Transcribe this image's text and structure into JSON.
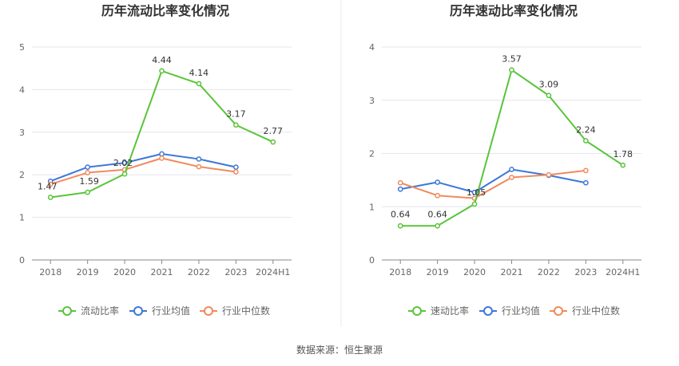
{
  "source_text": "数据来源：恒生聚源",
  "colors": {
    "main": "#5ac43a",
    "avg": "#3c78d8",
    "median": "#f08a5d",
    "grid": "#e3e6ee",
    "axis": "#888888",
    "divider": "#e8e8e8"
  },
  "chart_data": [
    {
      "type": "line",
      "title": "历年流动比率变化情况",
      "categories": [
        "2018",
        "2019",
        "2020",
        "2021",
        "2022",
        "2023",
        "2024H1"
      ],
      "ylim": [
        0,
        5
      ],
      "yticks": [
        0,
        1,
        2,
        3,
        4,
        5
      ],
      "grid": true,
      "legend_position": "bottom",
      "series": [
        {
          "name": "流动比率",
          "color": "#5ac43a",
          "values": [
            1.47,
            1.59,
            2.02,
            4.44,
            4.14,
            3.17,
            2.77
          ],
          "labels": [
            "1.47",
            "1.59",
            "2.02",
            "4.44",
            "4.14",
            "3.17",
            "2.77"
          ]
        },
        {
          "name": "行业均值",
          "color": "#3c78d8",
          "values": [
            1.85,
            2.18,
            2.28,
            2.49,
            2.37,
            2.18,
            null
          ]
        },
        {
          "name": "行业中位数",
          "color": "#f08a5d",
          "values": [
            1.78,
            2.05,
            2.12,
            2.39,
            2.19,
            2.07,
            null
          ]
        }
      ]
    },
    {
      "type": "line",
      "title": "历年速动比率变化情况",
      "categories": [
        "2018",
        "2019",
        "2020",
        "2021",
        "2022",
        "2023",
        "2024H1"
      ],
      "ylim": [
        0,
        4
      ],
      "yticks": [
        0,
        1,
        2,
        3,
        4
      ],
      "grid": true,
      "legend_position": "bottom",
      "series": [
        {
          "name": "速动比率",
          "color": "#5ac43a",
          "values": [
            0.64,
            0.64,
            1.05,
            3.57,
            3.09,
            2.24,
            1.78
          ],
          "labels": [
            "0.64",
            "0.64",
            "1.05",
            "3.57",
            "3.09",
            "2.24",
            "1.78"
          ]
        },
        {
          "name": "行业均值",
          "color": "#3c78d8",
          "values": [
            1.33,
            1.46,
            1.27,
            1.7,
            1.59,
            1.45,
            null
          ]
        },
        {
          "name": "行业中位数",
          "color": "#f08a5d",
          "values": [
            1.45,
            1.21,
            1.16,
            1.55,
            1.6,
            1.68,
            null
          ]
        }
      ]
    }
  ]
}
